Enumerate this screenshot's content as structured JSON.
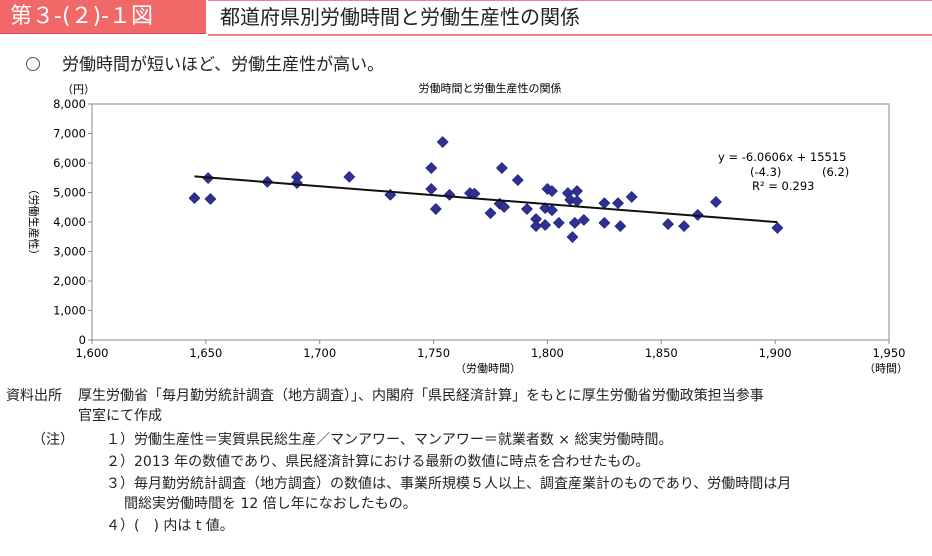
{
  "header": {
    "figure_label": "第３-(２)-１図",
    "title": "都道府県別労働時間と労働生産性の関係"
  },
  "lead": "労働時間が短いほど、労働生産性が高い。",
  "chart_data": {
    "type": "scatter",
    "title": "労働時間と労働生産性の関係",
    "xlabel": "（労働時間）",
    "xunit": "（時間）",
    "ylabel": "（労働生産性）",
    "yunit": "（円）",
    "xlim": [
      1600,
      1950
    ],
    "ylim": [
      0,
      8000
    ],
    "xticks": [
      "1,600",
      "1,650",
      "1,700",
      "1,750",
      "1,800",
      "1,850",
      "1,900",
      "1,950"
    ],
    "yticks": [
      "0",
      "1,000",
      "2,000",
      "3,000",
      "4,000",
      "5,000",
      "6,000",
      "7,000",
      "8,000"
    ],
    "grid": false,
    "marker_color": "#2e3192",
    "points": [
      [
        1645,
        4810
      ],
      [
        1651,
        5490
      ],
      [
        1652,
        4780
      ],
      [
        1677,
        5360
      ],
      [
        1690,
        5530
      ],
      [
        1690,
        5320
      ],
      [
        1713,
        5530
      ],
      [
        1731,
        4920
      ],
      [
        1749,
        5830
      ],
      [
        1749,
        5120
      ],
      [
        1751,
        4440
      ],
      [
        1754,
        6710
      ],
      [
        1757,
        4920
      ],
      [
        1766,
        4980
      ],
      [
        1768,
        4960
      ],
      [
        1775,
        4300
      ],
      [
        1779,
        4620
      ],
      [
        1781,
        4510
      ],
      [
        1780,
        5830
      ],
      [
        1787,
        5420
      ],
      [
        1791,
        4440
      ],
      [
        1795,
        4100
      ],
      [
        1795,
        3860
      ],
      [
        1799,
        3900
      ],
      [
        1799,
        4470
      ],
      [
        1802,
        4400
      ],
      [
        1800,
        5120
      ],
      [
        1802,
        5050
      ],
      [
        1805,
        3970
      ],
      [
        1811,
        3490
      ],
      [
        1809,
        4980
      ],
      [
        1813,
        5050
      ],
      [
        1810,
        4750
      ],
      [
        1813,
        4710
      ],
      [
        1812,
        3970
      ],
      [
        1816,
        4070
      ],
      [
        1825,
        4640
      ],
      [
        1831,
        4640
      ],
      [
        1837,
        4850
      ],
      [
        1825,
        3970
      ],
      [
        1832,
        3860
      ],
      [
        1853,
        3930
      ],
      [
        1860,
        3860
      ],
      [
        1866,
        4240
      ],
      [
        1874,
        4680
      ],
      [
        1901,
        3800
      ]
    ],
    "trendline": {
      "slope": -6.0606,
      "intercept": 15515,
      "x_range": [
        1645,
        1901
      ]
    },
    "annotations": {
      "equation": "y = -6.0606x + 15515",
      "t_slope": "(-4.3)",
      "t_intercept": "(6.2)",
      "r2": "R² = 0.293"
    }
  },
  "notes": {
    "source_label": "資料出所",
    "source_line1": "厚生労働省「毎月勤労統計調査（地方調査）」、内閣府「県民経済計算」をもとに厚生労働省労働政策担当参事",
    "source_line2": "官室にて作成",
    "note_label": "（注）",
    "n1": "１）労働生産性＝実質県民総生産／マンアワー、マンアワー＝就業者数 × 総実労働時間。",
    "n2": "２）2013 年の数値であり、県民経済計算における最新の数値に時点を合わせたもの。",
    "n3a": "３）毎月勤労統計調査（地方調査）の数値は、事業所規模５人以上、調査産業計のものであり、労働時間は月",
    "n3b": "間総実労働時間を 12 倍し年になおしたもの。",
    "n4": "４）(　) 内は t 値。"
  }
}
